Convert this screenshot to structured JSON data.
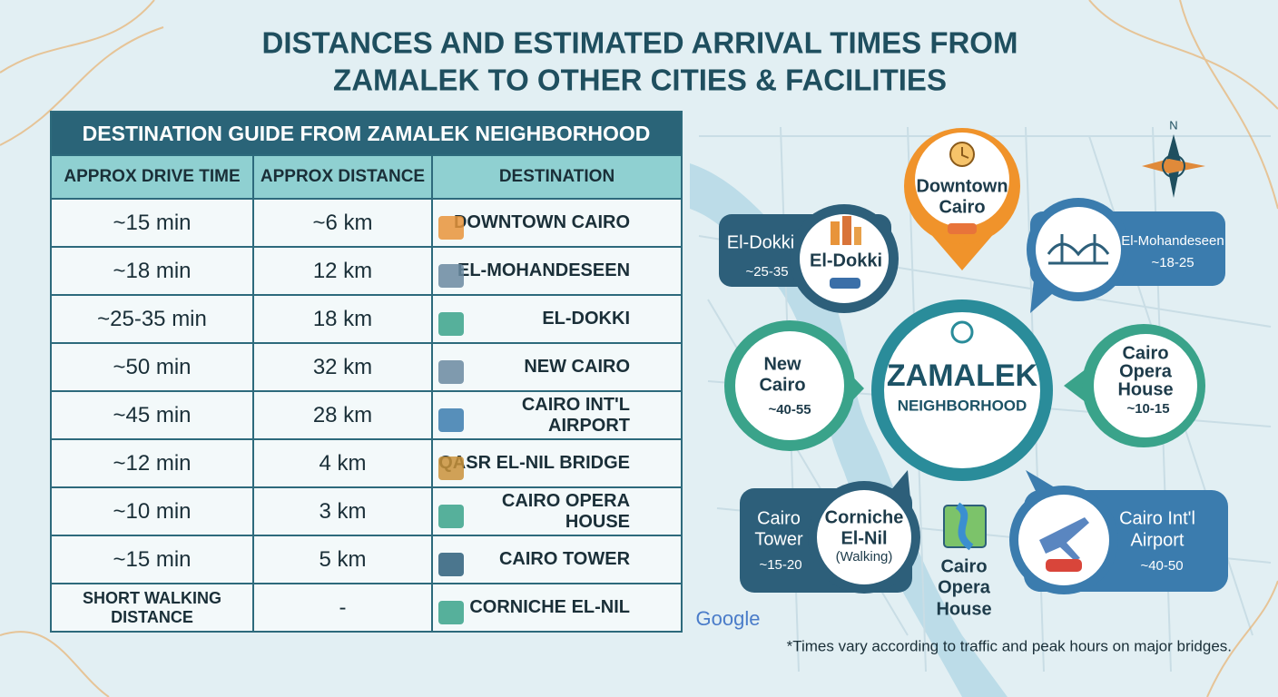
{
  "header": {
    "title_lines": [
      "DISTANCES AND ESTIMATED ARRIVAL TIMES FROM",
      "ZAMALEK TO OTHER CITIES & FACILITIES"
    ]
  },
  "table": {
    "title": "DESTINATION GUIDE FROM ZAMALEK NEIGHBORHOOD",
    "headers": [
      "APPROX DRIVE TIME",
      "APPROX DISTANCE",
      "DESTINATION"
    ],
    "rows": [
      [
        "~15 min",
        "~6 km",
        "DOWNTOWN CAIRO"
      ],
      [
        "~18 min",
        "12 km",
        "EL-MOHANDESEEN"
      ],
      [
        "~25-35 min",
        "18 km",
        "EL-DOKKI"
      ],
      [
        "~50 min",
        "32 km",
        "NEW CAIRO"
      ],
      [
        "~45 min",
        "28 km",
        "CAIRO INT'L AIRPORT"
      ],
      [
        "~12 min",
        "4 km",
        "QASR EL-NIL BRIDGE"
      ],
      [
        "~10 min",
        "3 km",
        "CAIRO OPERA HOUSE"
      ],
      [
        "~15 min",
        "5 km",
        "CAIRO TOWER"
      ],
      [
        "SHORT WALKING DISTANCE",
        "-",
        "CORNICHE EL-NIL"
      ]
    ]
  },
  "map": {
    "compass": "N",
    "center": {
      "title": "ZAMALEK",
      "subtitle": "NEIGHBORHOOD"
    },
    "downtown": {
      "lines": [
        "Downtown",
        "Cairo"
      ]
    },
    "dokki": {
      "label": "El-Dokki",
      "time": "~25-35",
      "inner_label": "El-Dokki"
    },
    "mohandeseen": {
      "label": "El-Mohandeseen",
      "time": "~18-25"
    },
    "new_cairo": {
      "lines": [
        "New",
        "Cairo"
      ],
      "time": "~40-55"
    },
    "opera": {
      "lines": [
        "Cairo",
        "Opera",
        "House"
      ],
      "time": "~10-15"
    },
    "tower": {
      "lines": [
        "Cairo",
        "Tower"
      ],
      "time": "~15-20",
      "inner_lines": [
        "Corniche",
        "El-Nil",
        "(Walking)"
      ]
    },
    "opera_label": {
      "lines": [
        "Cairo",
        "Opera",
        "House"
      ]
    },
    "airport": {
      "lines": [
        "Cairo Int'l",
        "Airport"
      ],
      "time": "~40-50"
    },
    "google": "Google",
    "footnote": "*Times vary according to traffic and peak hours on major bridges."
  }
}
